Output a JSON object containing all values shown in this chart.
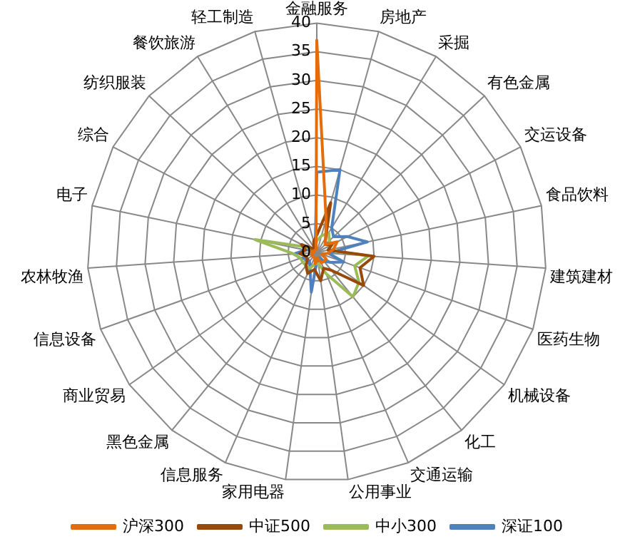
{
  "chart_data": {
    "type": "radar",
    "categories": [
      "金融服务",
      "房地产",
      "采掘",
      "有色金属",
      "交运设备",
      "食品饮料",
      "建筑建材",
      "医药生物",
      "机械设备",
      "化工",
      "交通运输",
      "公用事业",
      "家用电器",
      "信息服务",
      "黑色金属",
      "商业贸易",
      "信息设备",
      "农林牧渔",
      "电子",
      "综合",
      "纺织服装",
      "餐饮旅游",
      "轻工制造"
    ],
    "ylim": [
      0,
      40
    ],
    "yticks": [
      0,
      5,
      10,
      15,
      20,
      25,
      30,
      35,
      40
    ],
    "grid": true,
    "legend": "bottom",
    "marker": "none",
    "series": [
      {
        "name": "沪深300",
        "color": "#e46c0a",
        "values": [
          37,
          6,
          3,
          2,
          4,
          3,
          2,
          1,
          2,
          2,
          2,
          1,
          2,
          1,
          1,
          1,
          1,
          0.5,
          1,
          0.5,
          0.5,
          0.5,
          0.5
        ]
      },
      {
        "name": "中证500",
        "color": "#984807",
        "values": [
          3,
          9,
          3,
          2,
          3,
          2,
          10,
          8,
          10,
          4,
          3,
          5,
          3,
          4,
          3,
          2,
          2,
          3,
          2,
          3,
          1,
          1,
          2
        ]
      },
      {
        "name": "中小300",
        "color": "#9bbb59",
        "values": [
          2,
          3,
          4,
          3,
          3,
          2,
          9,
          7,
          9,
          10,
          4,
          2,
          2,
          3,
          3,
          3,
          3,
          4,
          11,
          2,
          1,
          1,
          1
        ]
      },
      {
        "name": "深证100",
        "color": "#4f81bd",
        "values": [
          14,
          15,
          5,
          4,
          6,
          9,
          2,
          5,
          3,
          2,
          1,
          1,
          7,
          3,
          2,
          2,
          3,
          4,
          2,
          1,
          1,
          1,
          1
        ]
      }
    ]
  }
}
